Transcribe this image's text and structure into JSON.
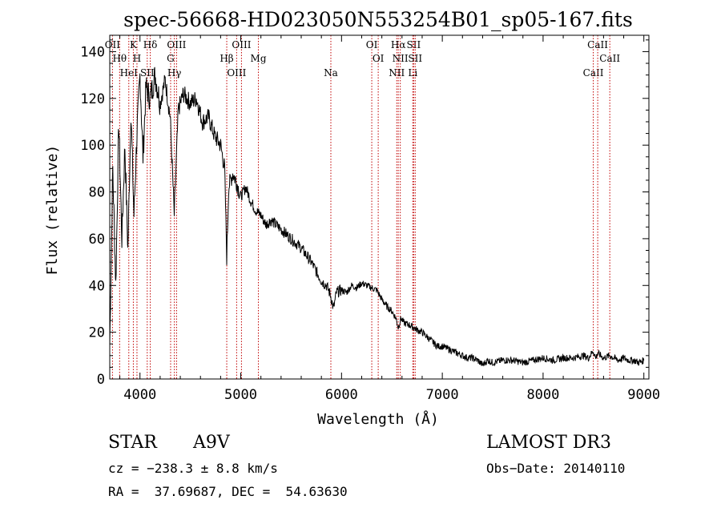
{
  "chart_data": {
    "type": "line",
    "title": "spec-56668-HD023050N553254B01_sp05-167.fits",
    "xlabel": "Wavelength (Å)",
    "ylabel": "Flux (relative)",
    "xlim": [
      3700,
      9050
    ],
    "ylim": [
      0,
      147
    ],
    "xticks": [
      4000,
      5000,
      6000,
      7000,
      8000,
      9000
    ],
    "yticks": [
      0,
      20,
      40,
      60,
      80,
      100,
      120,
      140
    ],
    "grid": false,
    "series": [
      {
        "name": "flux",
        "x": [
          3700,
          3730,
          3760,
          3790,
          3820,
          3850,
          3880,
          3910,
          3940,
          3970,
          4000,
          4030,
          4060,
          4100,
          4150,
          4200,
          4250,
          4300,
          4340,
          4380,
          4430,
          4500,
          4560,
          4620,
          4680,
          4740,
          4800,
          4840,
          4861,
          4880,
          4920,
          4960,
          5000,
          5050,
          5100,
          5150,
          5200,
          5250,
          5300,
          5400,
          5500,
          5600,
          5700,
          5800,
          5850,
          5890,
          5920,
          5950,
          6000,
          6050,
          6100,
          6150,
          6200,
          6250,
          6300,
          6350,
          6400,
          6450,
          6500,
          6540,
          6563,
          6590,
          6620,
          6680,
          6750,
          6800,
          6850,
          6900,
          6950,
          7000,
          7050,
          7100,
          7150,
          7200,
          7250,
          7300,
          7350,
          7400,
          7450,
          7500,
          7600,
          7700,
          7800,
          7900,
          8000,
          8100,
          8200,
          8300,
          8400,
          8450,
          8498,
          8520,
          8542,
          8600,
          8662,
          8700,
          8750,
          8800,
          8850,
          8900,
          8950,
          9000
        ],
        "y": [
          15,
          90,
          40,
          110,
          60,
          100,
          55,
          115,
          70,
          105,
          130,
          95,
          125,
          120,
          130,
          118,
          128,
          112,
          70,
          115,
          122,
          118,
          120,
          110,
          112,
          104,
          100,
          90,
          52,
          82,
          88,
          84,
          78,
          82,
          76,
          72,
          70,
          66,
          68,
          64,
          60,
          56,
          50,
          42,
          40,
          36,
          30,
          37,
          38,
          37,
          40,
          39,
          41,
          40,
          39,
          38,
          34,
          31,
          29,
          26,
          22,
          26,
          24,
          23,
          21,
          20,
          18,
          16,
          14,
          14,
          13,
          12,
          11,
          10,
          9,
          9,
          8,
          6,
          8,
          7,
          8,
          8,
          7,
          8,
          9,
          8,
          9,
          9,
          10,
          9,
          12,
          9,
          11,
          9,
          10,
          9,
          8,
          9,
          8,
          8,
          7,
          8
        ]
      }
    ],
    "lines": [
      {
        "wave": 3727,
        "label": "OII"
      },
      {
        "wave": 3798,
        "label": "Hθ"
      },
      {
        "wave": 3889,
        "label": "HeI"
      },
      {
        "wave": 3934,
        "label": "K"
      },
      {
        "wave": 3970,
        "label": "H"
      },
      {
        "wave": 4072,
        "label": "SII"
      },
      {
        "wave": 4102,
        "label": "Hδ"
      },
      {
        "wave": 4304,
        "label": "G"
      },
      {
        "wave": 4341,
        "label": "Hγ"
      },
      {
        "wave": 4363,
        "label": "OIII"
      },
      {
        "wave": 4861,
        "label": "Hβ"
      },
      {
        "wave": 4959,
        "label": "OIII"
      },
      {
        "wave": 5007,
        "label": "OIII"
      },
      {
        "wave": 5175,
        "label": "Mg"
      },
      {
        "wave": 5894,
        "label": "Na"
      },
      {
        "wave": 6300,
        "label": "OI"
      },
      {
        "wave": 6364,
        "label": "OI"
      },
      {
        "wave": 6548,
        "label": "NII"
      },
      {
        "wave": 6563,
        "label": "Hα"
      },
      {
        "wave": 6583,
        "label": "NII"
      },
      {
        "wave": 6707,
        "label": "Li"
      },
      {
        "wave": 6716,
        "label": "SII"
      },
      {
        "wave": 6731,
        "label": "SII"
      },
      {
        "wave": 8498,
        "label": "CaII"
      },
      {
        "wave": 8542,
        "label": "CaII"
      },
      {
        "wave": 8662,
        "label": "CaII"
      }
    ],
    "line_color": "#c00000"
  },
  "info": {
    "object_class": "STAR",
    "subclass": "A9V",
    "survey": "LAMOST DR3",
    "redshift": "cz = −238.3 ± 8.8 km/s",
    "obs_date": "Obs−Date: 20140110",
    "coords": "RA =  37.69687, DEC =  54.63630"
  }
}
